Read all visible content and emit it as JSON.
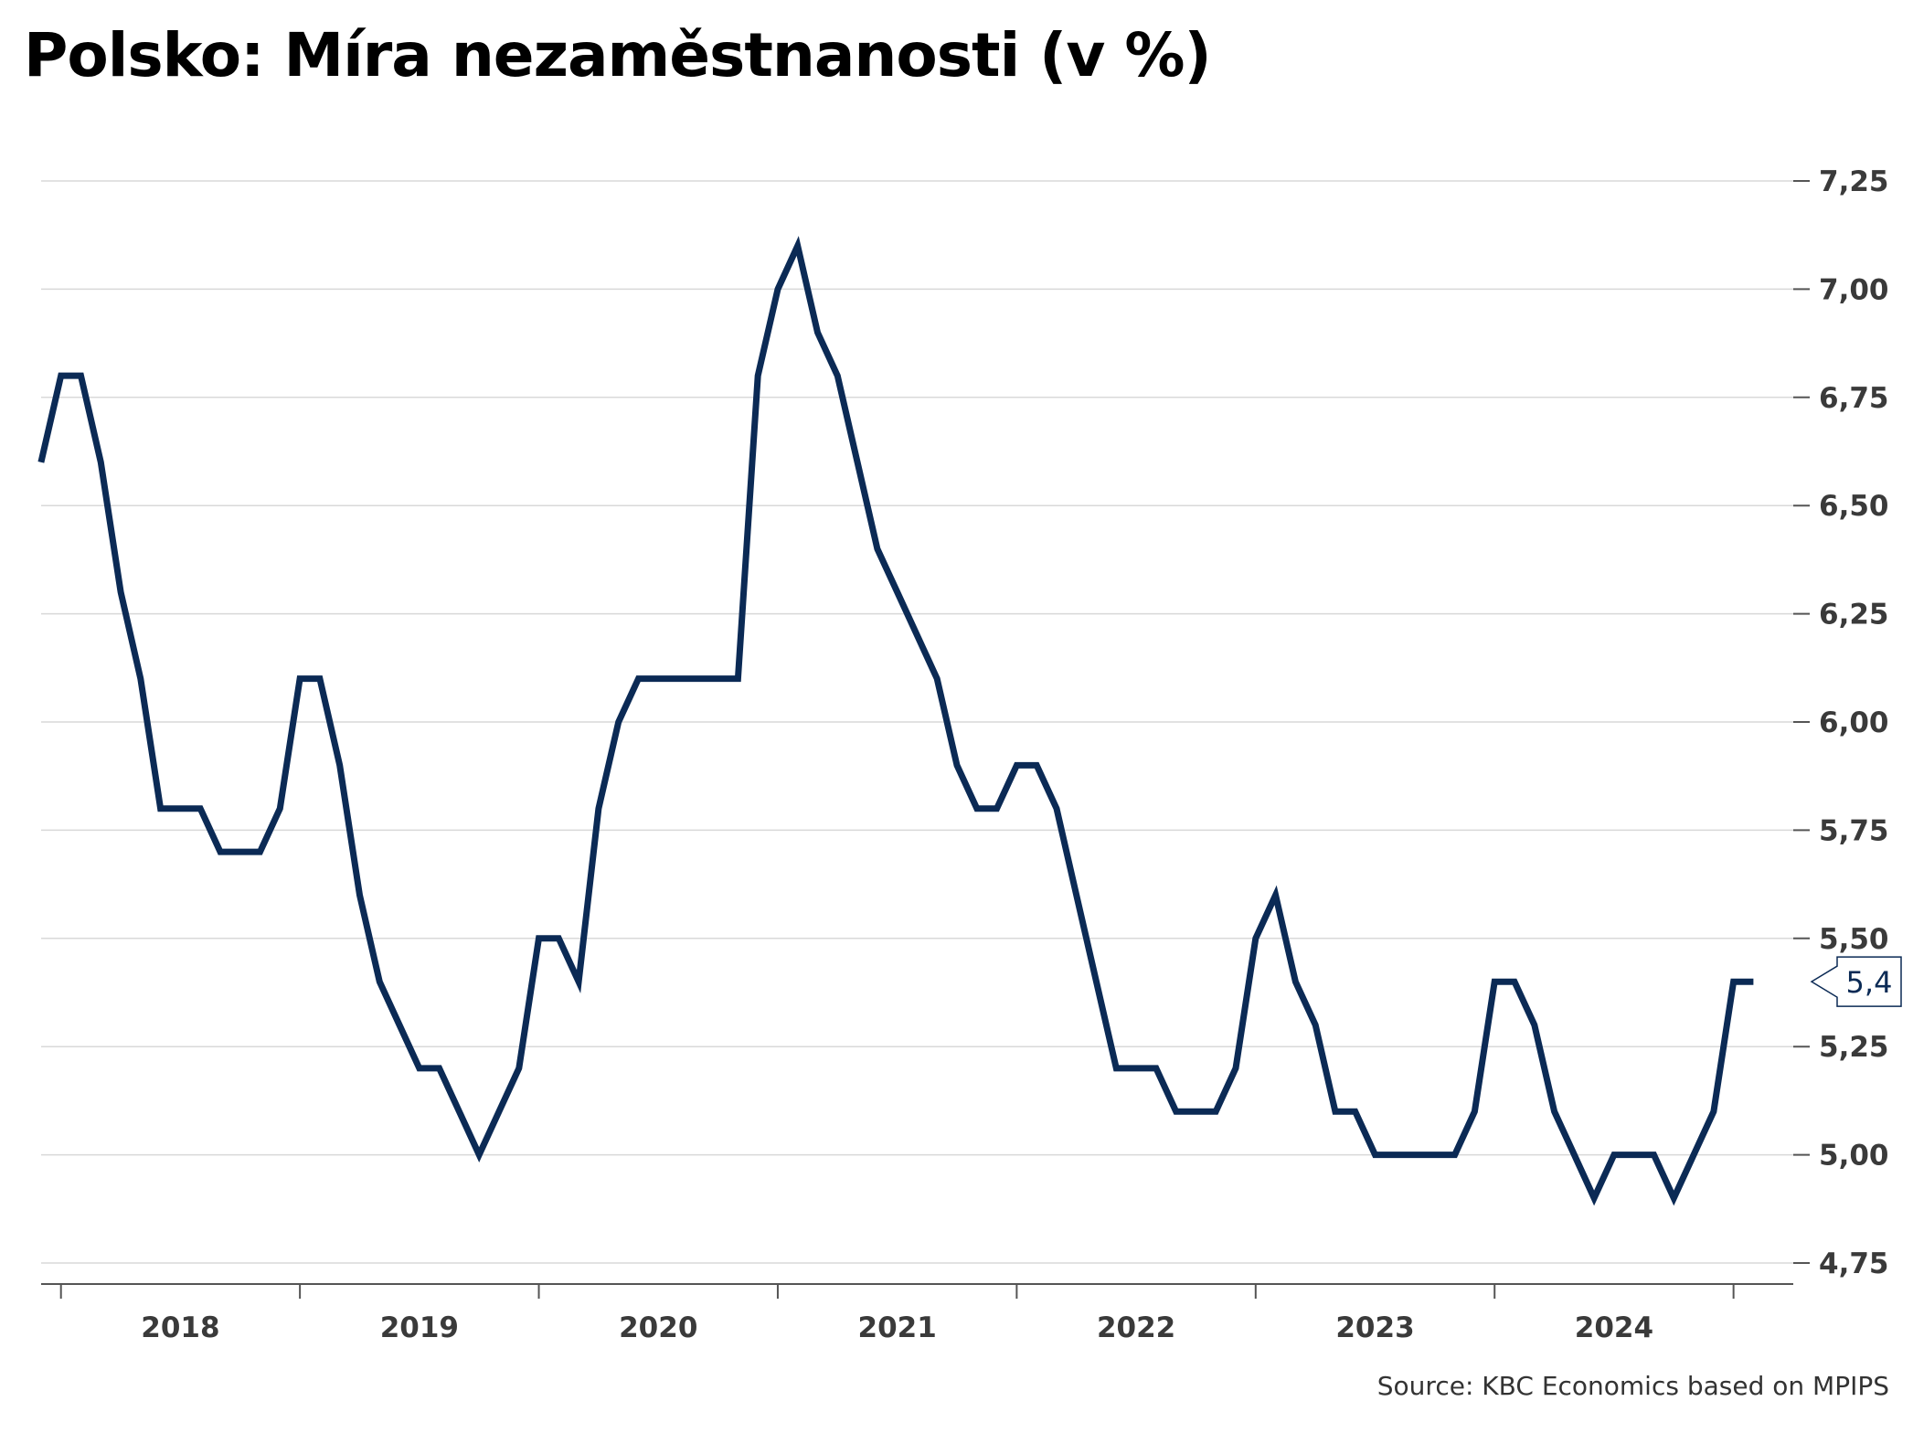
{
  "chart_data": {
    "type": "line",
    "title": "Polsko: Míra nezaměstnanosti (v %)",
    "source": "Source: KBC Economics based on MPIPS",
    "x_labels": [
      "2018",
      "2019",
      "2020",
      "2021",
      "2022",
      "2023",
      "2024"
    ],
    "x_range": [
      2017.917,
      2025.25
    ],
    "ylim": [
      4.75,
      7.25
    ],
    "y_ticks": [
      "4,75",
      "5,00",
      "5,25",
      "5,50",
      "5,75",
      "6,00",
      "6,25",
      "6,50",
      "6,75",
      "7,00",
      "7,25"
    ],
    "y_axis_position": "right",
    "grid": true,
    "line_color": "#0b2a55",
    "last_value_label": "5,4",
    "series": [
      {
        "start": "2017-12",
        "frequency": "monthly",
        "values": [
          6.6,
          6.8,
          6.8,
          6.6,
          6.3,
          6.1,
          5.8,
          5.8,
          5.8,
          5.7,
          5.7,
          5.7,
          5.8,
          6.1,
          6.1,
          5.9,
          5.6,
          5.4,
          5.3,
          5.2,
          5.2,
          5.1,
          5.0,
          5.1,
          5.2,
          5.5,
          5.5,
          5.4,
          5.8,
          6.0,
          6.1,
          6.1,
          6.1,
          6.1,
          6.1,
          6.1,
          6.8,
          7.0,
          7.1,
          6.9,
          6.8,
          6.6,
          6.4,
          6.3,
          6.2,
          6.1,
          5.9,
          5.8,
          5.8,
          5.9,
          5.9,
          5.8,
          5.6,
          5.4,
          5.2,
          5.2,
          5.2,
          5.1,
          5.1,
          5.1,
          5.2,
          5.5,
          5.6,
          5.4,
          5.3,
          5.1,
          5.1,
          5.0,
          5.0,
          5.0,
          5.0,
          5.0,
          5.1,
          5.4,
          5.4,
          5.3,
          5.1,
          5.0,
          4.9,
          5.0,
          5.0,
          5.0,
          4.9,
          5.0,
          5.1,
          5.4,
          5.4
        ]
      }
    ]
  }
}
